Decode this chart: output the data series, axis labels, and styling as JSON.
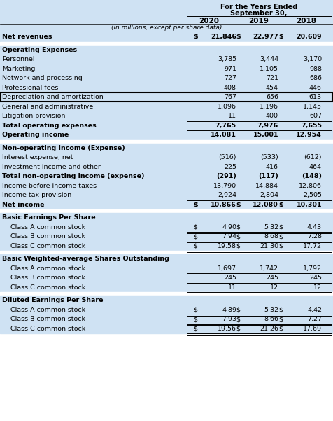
{
  "header_title_line1": "For the Years Ended",
  "header_title_line2": "September 30,",
  "col_headers": [
    "2020",
    "2019",
    "2018"
  ],
  "subheader": "(in millions, except per share data)",
  "bg_light": "#cfe2f3",
  "bg_white": "#ffffff",
  "rows": [
    {
      "label": "Net revenues",
      "bold": true,
      "values": [
        "21,846",
        "22,977",
        "20,609"
      ],
      "dollar": [
        true,
        true,
        true
      ],
      "indent": 0,
      "topline": false,
      "botline": false,
      "dbl_botline": false,
      "box": false,
      "spacer": false
    },
    {
      "label": "",
      "spacer": true
    },
    {
      "label": "Operating Expenses",
      "bold": true,
      "values": [
        "",
        "",
        ""
      ],
      "dollar": [
        false,
        false,
        false
      ],
      "indent": 0,
      "spacer": false
    },
    {
      "label": "Personnel",
      "bold": false,
      "values": [
        "3,785",
        "3,444",
        "3,170"
      ],
      "dollar": [
        false,
        false,
        false
      ],
      "indent": 0,
      "spacer": false
    },
    {
      "label": "Marketing",
      "bold": false,
      "values": [
        "971",
        "1,105",
        "988"
      ],
      "dollar": [
        false,
        false,
        false
      ],
      "indent": 0,
      "spacer": false
    },
    {
      "label": "Network and processing",
      "bold": false,
      "values": [
        "727",
        "721",
        "686"
      ],
      "dollar": [
        false,
        false,
        false
      ],
      "indent": 0,
      "spacer": false
    },
    {
      "label": "Professional fees",
      "bold": false,
      "values": [
        "408",
        "454",
        "446"
      ],
      "dollar": [
        false,
        false,
        false
      ],
      "indent": 0,
      "spacer": false
    },
    {
      "label": "Depreciation and amortization",
      "bold": false,
      "values": [
        "767",
        "656",
        "613"
      ],
      "dollar": [
        false,
        false,
        false
      ],
      "indent": 0,
      "box": true,
      "spacer": false
    },
    {
      "label": "General and administrative",
      "bold": false,
      "values": [
        "1,096",
        "1,196",
        "1,145"
      ],
      "dollar": [
        false,
        false,
        false
      ],
      "indent": 0,
      "spacer": false
    },
    {
      "label": "Litigation provision",
      "bold": false,
      "values": [
        "11",
        "400",
        "607"
      ],
      "dollar": [
        false,
        false,
        false
      ],
      "indent": 0,
      "spacer": false
    },
    {
      "label": "Total operating expenses",
      "bold": true,
      "values": [
        "7,765",
        "7,976",
        "7,655"
      ],
      "dollar": [
        false,
        false,
        false
      ],
      "indent": 0,
      "topline": true,
      "spacer": false
    },
    {
      "label": "Operating income",
      "bold": true,
      "values": [
        "14,081",
        "15,001",
        "12,954"
      ],
      "dollar": [
        false,
        false,
        false
      ],
      "indent": 0,
      "topline": true,
      "spacer": false
    },
    {
      "label": "",
      "spacer": true
    },
    {
      "label": "Non-operating Income (Expense)",
      "bold": true,
      "values": [
        "",
        "",
        ""
      ],
      "dollar": [
        false,
        false,
        false
      ],
      "indent": 0,
      "spacer": false
    },
    {
      "label": "Interest expense, net",
      "bold": false,
      "values": [
        "(516)",
        "(533)",
        "(612)"
      ],
      "dollar": [
        false,
        false,
        false
      ],
      "indent": 0,
      "spacer": false
    },
    {
      "label": "Investment income and other",
      "bold": false,
      "values": [
        "225",
        "416",
        "464"
      ],
      "dollar": [
        false,
        false,
        false
      ],
      "indent": 0,
      "spacer": false
    },
    {
      "label": "Total non-operating income (expense)",
      "bold": true,
      "values": [
        "(291)",
        "(117)",
        "(148)"
      ],
      "dollar": [
        false,
        false,
        false
      ],
      "indent": 0,
      "topline": true,
      "spacer": false
    },
    {
      "label": "Income before income taxes",
      "bold": false,
      "values": [
        "13,790",
        "14,884",
        "12,806"
      ],
      "dollar": [
        false,
        false,
        false
      ],
      "indent": 0,
      "spacer": false
    },
    {
      "label": "Income tax provision",
      "bold": false,
      "values": [
        "2,924",
        "2,804",
        "2,505"
      ],
      "dollar": [
        false,
        false,
        false
      ],
      "indent": 0,
      "spacer": false
    },
    {
      "label": "Net income",
      "bold": true,
      "values": [
        "10,866",
        "12,080",
        "10,301"
      ],
      "dollar": [
        true,
        true,
        true
      ],
      "indent": 0,
      "topline": true,
      "spacer": false
    },
    {
      "label": "",
      "spacer": true
    },
    {
      "label": "Basic Earnings Per Share",
      "bold": true,
      "values": [
        "",
        "",
        ""
      ],
      "dollar": [
        false,
        false,
        false
      ],
      "indent": 0,
      "spacer": false
    },
    {
      "label": "Class A common stock",
      "bold": false,
      "values": [
        "4.90",
        "5.32",
        "4.43"
      ],
      "dollar": [
        true,
        true,
        true
      ],
      "indent": 1,
      "dbl_botline": true,
      "spacer": false
    },
    {
      "label": "Class B common stock",
      "bold": false,
      "values": [
        "7.94",
        "8.68",
        "7.28"
      ],
      "dollar": [
        true,
        true,
        true
      ],
      "indent": 1,
      "dbl_botline": true,
      "spacer": false
    },
    {
      "label": "Class C common stock",
      "bold": false,
      "values": [
        "19.58",
        "21.30",
        "17.72"
      ],
      "dollar": [
        true,
        true,
        true
      ],
      "indent": 1,
      "dbl_botline": true,
      "spacer": false
    },
    {
      "label": "",
      "spacer": true
    },
    {
      "label": "Basic Weighted-average Shares Outstanding",
      "bold": true,
      "values": [
        "",
        "",
        ""
      ],
      "dollar": [
        false,
        false,
        false
      ],
      "indent": 0,
      "spacer": false
    },
    {
      "label": "Class A common stock",
      "bold": false,
      "values": [
        "1,697",
        "1,742",
        "1,792"
      ],
      "dollar": [
        false,
        false,
        false
      ],
      "indent": 1,
      "dbl_botline": true,
      "spacer": false
    },
    {
      "label": "Class B common stock",
      "bold": false,
      "values": [
        "245",
        "245",
        "245"
      ],
      "dollar": [
        false,
        false,
        false
      ],
      "indent": 1,
      "dbl_botline": true,
      "spacer": false
    },
    {
      "label": "Class C common stock",
      "bold": false,
      "values": [
        "11",
        "12",
        "12"
      ],
      "dollar": [
        false,
        false,
        false
      ],
      "indent": 1,
      "dbl_botline": true,
      "spacer": false
    },
    {
      "label": "",
      "spacer": true
    },
    {
      "label": "Diluted Earnings Per Share",
      "bold": true,
      "values": [
        "",
        "",
        ""
      ],
      "dollar": [
        false,
        false,
        false
      ],
      "indent": 0,
      "spacer": false
    },
    {
      "label": "Class A common stock",
      "bold": false,
      "values": [
        "4.89",
        "5.32",
        "4.42"
      ],
      "dollar": [
        true,
        true,
        true
      ],
      "indent": 1,
      "dbl_botline": true,
      "spacer": false
    },
    {
      "label": "Class B common stock",
      "bold": false,
      "values": [
        "7.93",
        "8.66",
        "7.27"
      ],
      "dollar": [
        true,
        true,
        true
      ],
      "indent": 1,
      "dbl_botline": true,
      "spacer": false
    },
    {
      "label": "Class C common stock",
      "bold": false,
      "values": [
        "19.56",
        "21.26",
        "17.69"
      ],
      "dollar": [
        true,
        true,
        true
      ],
      "indent": 1,
      "dbl_botline": true,
      "spacer": false
    }
  ]
}
